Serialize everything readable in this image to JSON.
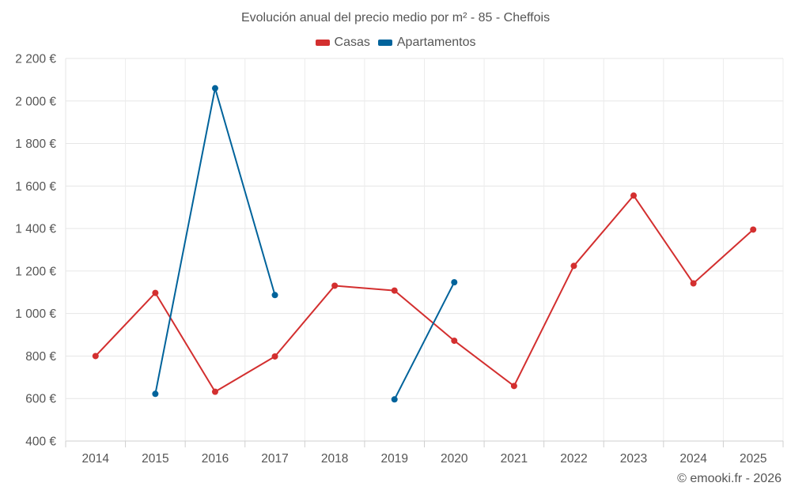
{
  "chart_data": {
    "type": "line",
    "title": "Evolución anual del precio medio por m² - 85 - Cheffois",
    "xlabel": "",
    "ylabel": "",
    "ylim": [
      400,
      2200
    ],
    "y_ticks": [
      400,
      600,
      800,
      1000,
      1200,
      1400,
      1600,
      1800,
      2000,
      2200
    ],
    "y_tick_labels": [
      "400 €",
      "600 €",
      "800 €",
      "1 000 €",
      "1 200 €",
      "1 400 €",
      "1 600 €",
      "1 800 €",
      "2 000 €",
      "2 200 €"
    ],
    "categories": [
      "2014",
      "2015",
      "2016",
      "2017",
      "2018",
      "2019",
      "2020",
      "2021",
      "2022",
      "2023",
      "2024",
      "2025"
    ],
    "legend_position": "top-center",
    "grid": true,
    "series": [
      {
        "name": "Casas",
        "color": "#d32f2f",
        "values": [
          800,
          1097,
          632,
          798,
          1131,
          1108,
          872,
          659,
          1224,
          1555,
          1142,
          1395
        ]
      },
      {
        "name": "Apartamentos",
        "color": "#00639b",
        "values": [
          null,
          622,
          2060,
          1087,
          null,
          596,
          1147,
          null,
          null,
          null,
          null,
          null
        ]
      }
    ]
  },
  "credit": "© emooki.fr - 2026"
}
